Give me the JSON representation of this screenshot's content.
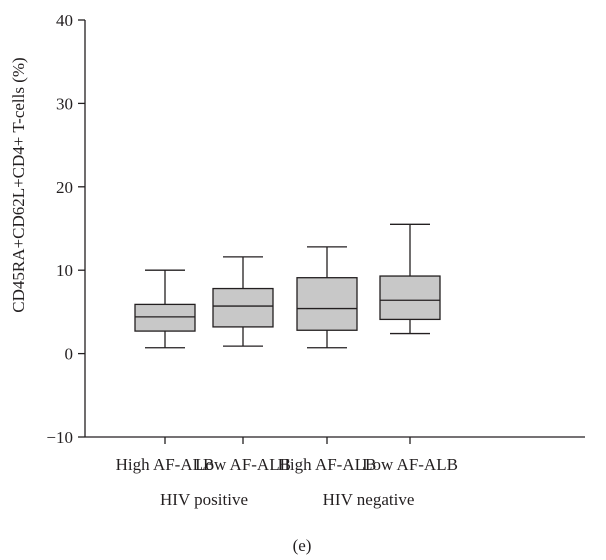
{
  "chart_data": {
    "type": "box",
    "ylabel": "CD45RA+CD62L+CD4+ T-cells (%)",
    "ylim": [
      -10,
      40
    ],
    "yticks": [
      "−10",
      "0",
      "10",
      "20",
      "30",
      "40"
    ],
    "ytick_values": [
      -10,
      0,
      10,
      20,
      30,
      40
    ],
    "grid": false,
    "categories": [
      "High AF-ALB",
      "Low AF-ALB",
      "High AF-ALB",
      "Low AF-ALB"
    ],
    "groups": [
      {
        "label": "HIV positive",
        "categories": [
          0,
          1
        ]
      },
      {
        "label": "HIV negative",
        "categories": [
          2,
          3
        ]
      }
    ],
    "boxes": [
      {
        "whisker_low": 0.7,
        "q1": 2.7,
        "median": 4.4,
        "q3": 5.9,
        "whisker_high": 10.0
      },
      {
        "whisker_low": 0.9,
        "q1": 3.2,
        "median": 5.7,
        "q3": 7.8,
        "whisker_high": 11.6
      },
      {
        "whisker_low": 0.7,
        "q1": 2.8,
        "median": 5.4,
        "q3": 9.1,
        "whisker_high": 12.8
      },
      {
        "whisker_low": 2.4,
        "q1": 4.1,
        "median": 6.4,
        "q3": 9.3,
        "whisker_high": 15.5
      }
    ],
    "box_fill": "#c8c8c8",
    "line_color": "#231f20",
    "panel_label": "(e)"
  }
}
